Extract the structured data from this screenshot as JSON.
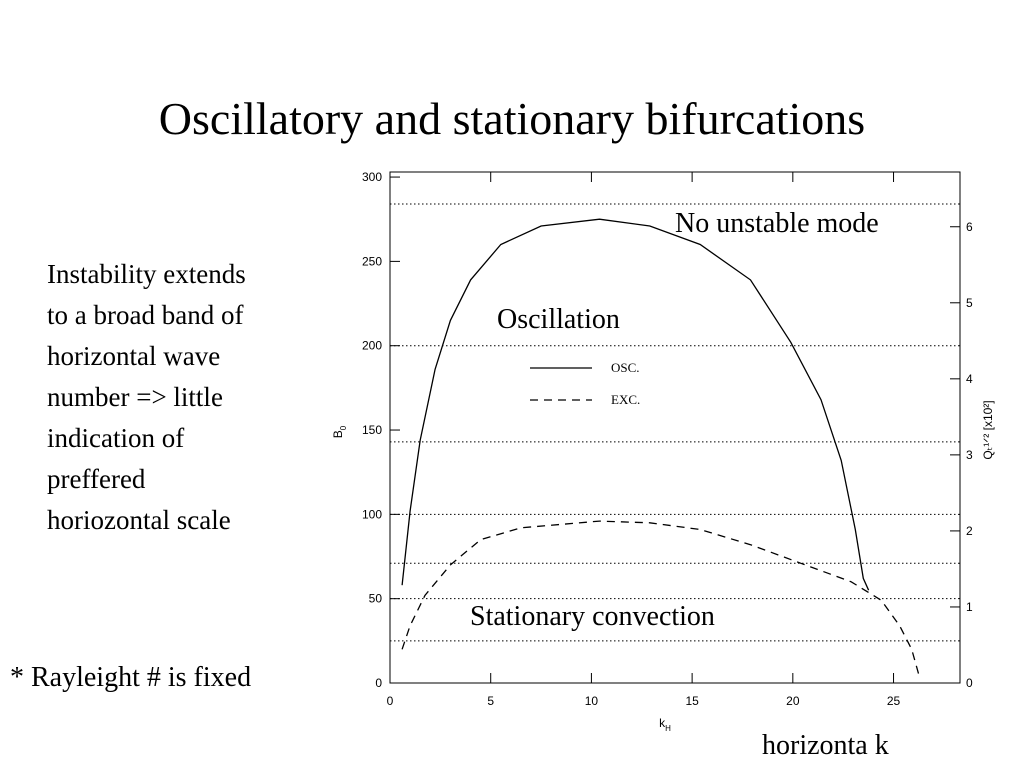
{
  "header": {
    "title": "Oscillatory and stationary bifurcations"
  },
  "body": [
    "Instability extends",
    "to a broad band of",
    "horizontal wave",
    "number => little",
    "indication of",
    "preffered",
    "horiozontal scale"
  ],
  "footnote": "* Rayleight # is fixed",
  "caption": "horizonta k",
  "chart_data": {
    "type": "line",
    "xlabel": {
      "text": "k",
      "sub": "H"
    },
    "ylabel": {
      "text": "B",
      "sub": "0"
    },
    "y2label": "Qₜ¹ᐟ² [x10²]",
    "xlim": [
      0,
      28.3
    ],
    "xticks": [
      0,
      5,
      10,
      15,
      20,
      25
    ],
    "ylim": [
      0,
      303
    ],
    "yticks": [
      0,
      50,
      100,
      150,
      200,
      250,
      300
    ],
    "y2lim": [
      0,
      6.72
    ],
    "y2ticks": [
      0,
      1,
      2,
      3,
      4,
      5,
      6
    ],
    "hlines": [
      284,
      200,
      143,
      100,
      71,
      50,
      25
    ],
    "series": [
      {
        "name": "OSC.",
        "color": "#000000",
        "dash": "none",
        "x": [
          0.6,
          1.0,
          1.5,
          2.24,
          3.0,
          4.0,
          5.5,
          7.5,
          10.4,
          12.9,
          15.4,
          17.9,
          19.9,
          21.4,
          22.4,
          23.1,
          23.5,
          23.76
        ],
        "values": [
          58,
          102,
          144,
          186,
          215,
          239,
          260,
          271,
          275,
          271,
          260,
          239,
          202,
          168,
          132,
          91,
          62,
          55
        ]
      },
      {
        "name": "EXC.",
        "color": "#000000",
        "dash": "8 6",
        "x": [
          0.6,
          1.0,
          1.74,
          3.0,
          4.5,
          6.5,
          10.4,
          12.9,
          15.4,
          17.9,
          20.4,
          22.9,
          24.4,
          25.3,
          25.9,
          26.3
        ],
        "values": [
          20,
          34,
          52,
          70,
          85,
          92,
          96,
          95,
          91,
          82,
          71,
          60,
          49,
          34,
          20,
          3
        ]
      }
    ],
    "annotations": [
      "No unstable mode",
      "Oscillation",
      "Stationary convection"
    ]
  }
}
